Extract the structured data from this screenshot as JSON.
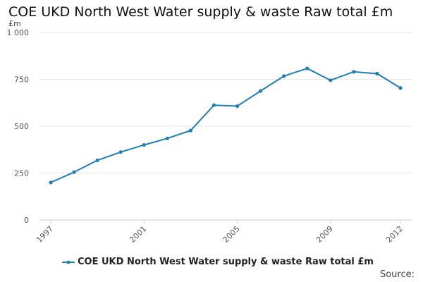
{
  "chart_data": {
    "type": "line",
    "title": "COE UKD North West Water supply & waste Raw total £m",
    "ylabel": "£m",
    "xlabel": "",
    "ylim": [
      0,
      1000
    ],
    "xlim": [
      1997,
      2012
    ],
    "y_ticks": [
      0,
      250,
      500,
      750,
      1000
    ],
    "y_tick_labels": [
      "0",
      "250",
      "500",
      "750",
      "1 000"
    ],
    "x_ticks": [
      "1997",
      "2001",
      "2005",
      "2009",
      "2012"
    ],
    "grid": true,
    "legend_position": "bottom",
    "series": [
      {
        "name": "COE UKD North West Water supply & waste Raw total £m",
        "color": "#1f7fb4",
        "x": [
          1997,
          1998,
          1999,
          2000,
          2001,
          2002,
          2003,
          2004,
          2005,
          2006,
          2007,
          2008,
          2009,
          2010,
          2011,
          2012
        ],
        "values": [
          200,
          255,
          318,
          362,
          400,
          435,
          477,
          612,
          607,
          688,
          767,
          808,
          745,
          790,
          780,
          704
        ]
      }
    ]
  },
  "source_label": "Source:"
}
